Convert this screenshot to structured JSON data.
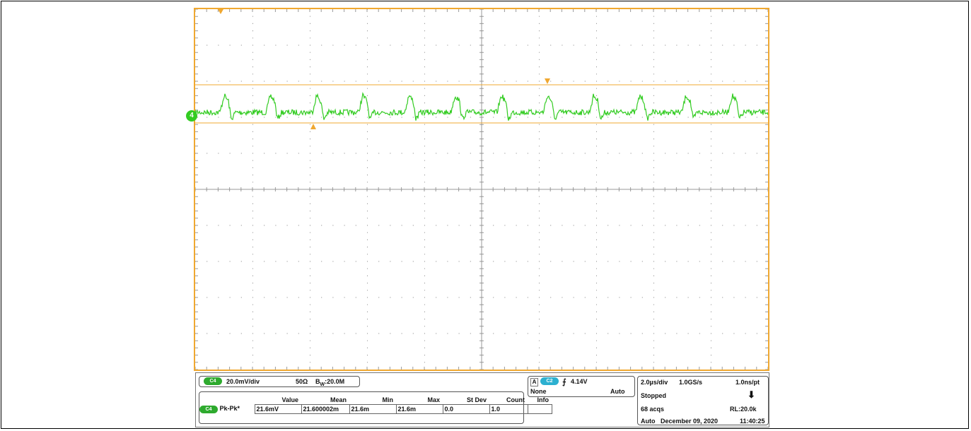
{
  "channel_marker": "4",
  "vertical": {
    "channel": "C4",
    "scale": "20.0mV/div",
    "impedance": "50Ω",
    "bw_prefix": "B",
    "bw_sub": "W",
    "bandwidth": ":20.0M"
  },
  "measurement": {
    "columns": [
      "Value",
      "Mean",
      "Min",
      "Max",
      "St Dev",
      "Count",
      "Info"
    ],
    "channel": "C4",
    "label": "Pk-Pk*",
    "values": [
      "21.6mV",
      "21.600002m",
      "21.6m",
      "21.6m",
      "0.0",
      "1.0",
      ""
    ]
  },
  "trigger": {
    "mode_letter": "A",
    "source": "C2",
    "slope_symbol": "⨍",
    "level": "4.14V",
    "coupling": "None",
    "sweep": "Auto"
  },
  "timebase": {
    "time_div": "2.0µs/div",
    "sample_rate": "1.0GS/s",
    "resolution": "1.0ns/pt",
    "state": "Stopped",
    "acqs": "68 acqs",
    "record_length": "RL:20.0k",
    "mode": "Auto",
    "date": "December 09, 2020",
    "time": "11:40:25"
  },
  "colors": {
    "trace": "#33cc22",
    "cursor": "#f0a830",
    "grid": "#9a9a9a"
  }
}
